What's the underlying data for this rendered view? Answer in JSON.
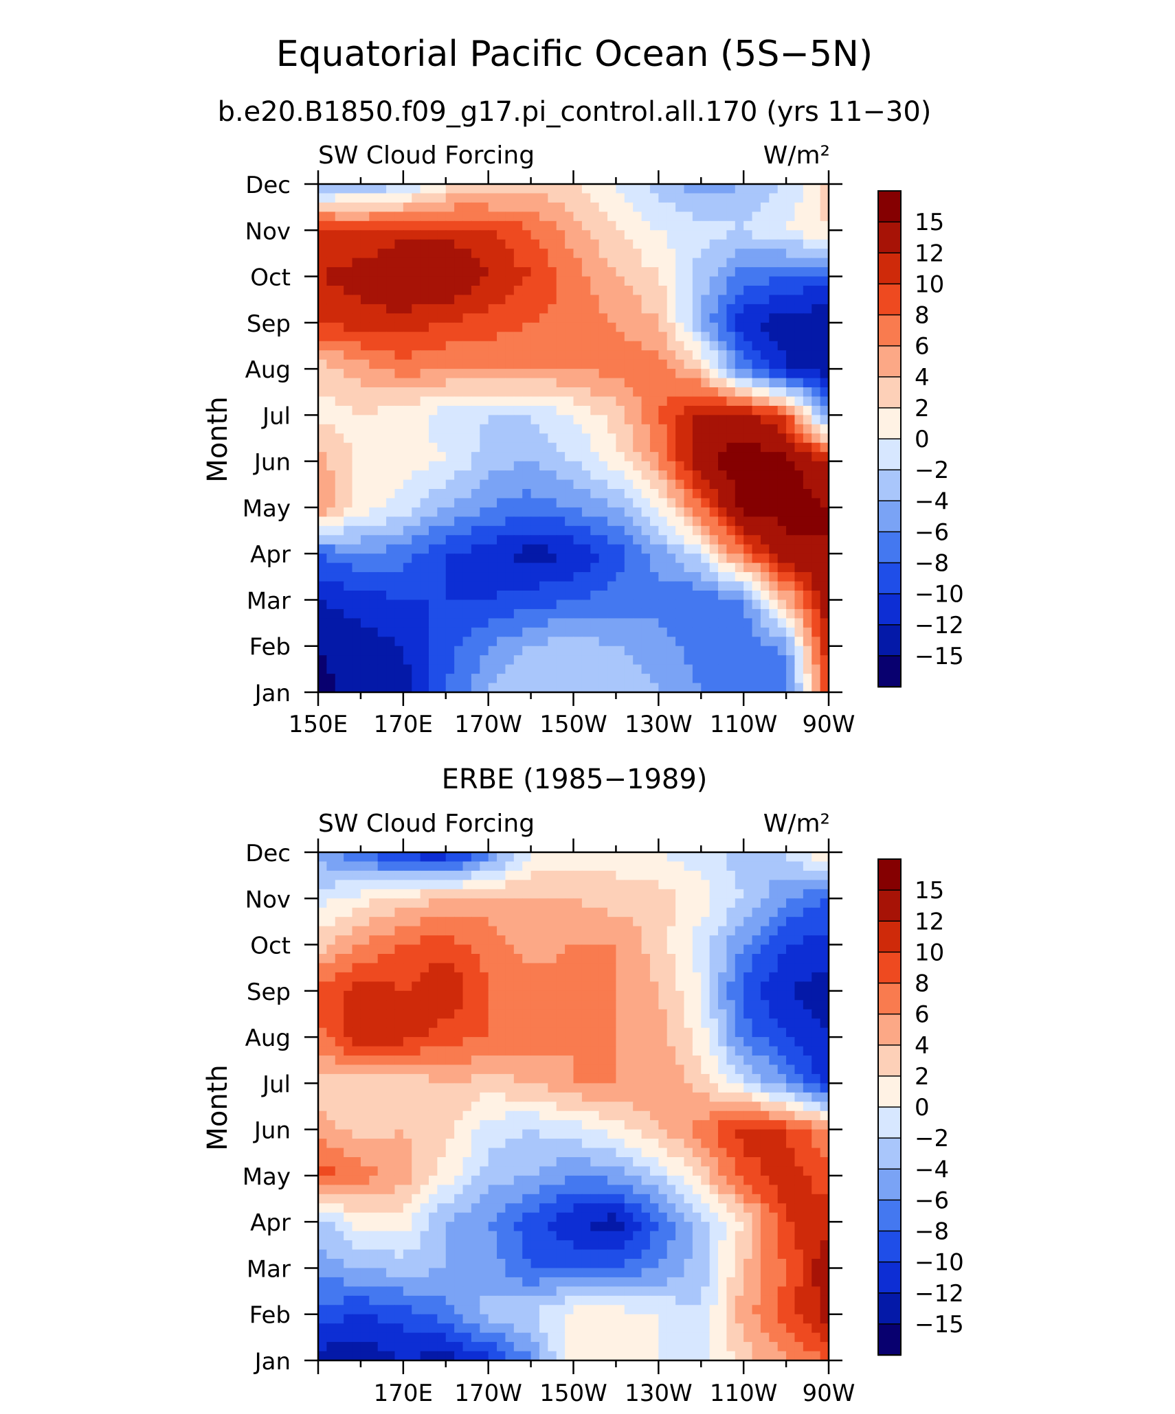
{
  "title": "Equatorial Pacific Ocean (5S−5N)",
  "chart_data": [
    {
      "type": "heatmap",
      "subtitle": "b.e20.B1850.f09_g17.pi_control.all.170 (yrs 11−30)",
      "left_label": "SW Cloud Forcing",
      "right_label": "W/m²",
      "ylabel": "Month",
      "xlabel": "",
      "x_ticks": [
        "150E",
        "170E",
        "170W",
        "150W",
        "130W",
        "110W",
        "90W"
      ],
      "y_ticks": [
        "Jan",
        "Feb",
        "Mar",
        "Apr",
        "May",
        "Jun",
        "Jul",
        "Aug",
        "Sep",
        "Oct",
        "Nov",
        "Dec"
      ],
      "xlim_lon_east": [
        150,
        270
      ],
      "months": [
        "Jan",
        "Feb",
        "Mar",
        "Apr",
        "May",
        "Jun",
        "Jul",
        "Aug",
        "Sep",
        "Oct",
        "Nov",
        "Dec"
      ],
      "longitudes": [
        150,
        160,
        170,
        180,
        190,
        200,
        210,
        220,
        230,
        240,
        250,
        260,
        270
      ],
      "values": [
        [
          -16,
          -14,
          -13,
          -8,
          -4,
          -2,
          -2,
          -3,
          -4,
          -6,
          -8,
          -8,
          10
        ],
        [
          -15,
          -13,
          -12,
          -9,
          -6,
          -4,
          -3,
          -4,
          -5,
          -7,
          -8,
          -5,
          12
        ],
        [
          -12,
          -11,
          -10,
          -10,
          -10,
          -9,
          -8,
          -7,
          -7,
          -8,
          -6,
          4,
          14
        ],
        [
          -8,
          -6,
          -7,
          -10,
          -11,
          -13,
          -12,
          -9,
          -5,
          -1,
          8,
          14,
          15
        ],
        [
          6,
          1,
          -1,
          -4,
          -6,
          -7,
          -6,
          -4,
          0,
          8,
          16,
          16,
          15
        ],
        [
          5,
          1,
          1,
          0,
          -3,
          -4,
          -2,
          1,
          6,
          14,
          17,
          16,
          12
        ],
        [
          1,
          2,
          1,
          -1,
          -2,
          -2,
          0,
          3,
          8,
          13,
          13,
          9,
          -6
        ],
        [
          3,
          5,
          7,
          6,
          6,
          6,
          6,
          7,
          7,
          3,
          -7,
          -12,
          -13
        ],
        [
          10,
          11,
          11,
          10,
          9,
          8,
          7,
          6,
          4,
          -4,
          -12,
          -13,
          -14
        ],
        [
          12,
          13,
          15,
          15,
          12,
          10,
          7,
          4,
          2,
          -3,
          -7,
          -8,
          -9
        ],
        [
          11,
          10,
          11,
          11,
          10,
          8,
          5,
          2,
          0,
          -1,
          -2,
          0,
          2
        ],
        [
          -5,
          -4,
          -3,
          1,
          2,
          3,
          2,
          0,
          -3,
          -5,
          -4,
          -2,
          3
        ]
      ],
      "levels": [
        -15,
        -12,
        -10,
        -8,
        -6,
        -4,
        -2,
        0,
        2,
        4,
        6,
        8,
        10,
        12,
        15
      ],
      "colorbar_labels": [
        "15",
        "12",
        "10",
        "8",
        "6",
        "4",
        "2",
        "0",
        "−2",
        "−4",
        "−6",
        "−8",
        "−10",
        "−12",
        "−15"
      ],
      "colors": [
        "#08006f",
        "#0419a8",
        "#0d2ed4",
        "#1f4ee8",
        "#4478f0",
        "#7aa3f5",
        "#a9c6fb",
        "#d7e7ff",
        "#fff2e4",
        "#fdd0b8",
        "#fca886",
        "#f97b4f",
        "#ee4a20",
        "#cf2a0a",
        "#a71306",
        "#850001"
      ]
    },
    {
      "type": "heatmap",
      "subtitle": "ERBE (1985−1989)",
      "left_label": "SW Cloud Forcing",
      "right_label": "W/m²",
      "ylabel": "Month",
      "xlabel": "",
      "x_ticks": [
        "170E",
        "170W",
        "150W",
        "130W",
        "110W",
        "90W"
      ],
      "y_ticks": [
        "Jan",
        "Feb",
        "Mar",
        "Apr",
        "May",
        "Jun",
        "Jul",
        "Aug",
        "Sep",
        "Oct",
        "Nov",
        "Dec"
      ],
      "xlim_lon_east": [
        150,
        270
      ],
      "months": [
        "Jan",
        "Feb",
        "Mar",
        "Apr",
        "May",
        "Jun",
        "Jul",
        "Aug",
        "Sep",
        "Oct",
        "Nov",
        "Dec"
      ],
      "longitudes": [
        150,
        160,
        170,
        180,
        190,
        200,
        210,
        220,
        230,
        240,
        250,
        260,
        270
      ],
      "values": [
        [
          -13,
          -14,
          -12,
          -13,
          -11,
          -6,
          1,
          1,
          0,
          -1,
          3,
          6,
          8
        ],
        [
          -9,
          -10,
          -9,
          -7,
          -3,
          -2,
          1,
          1,
          0,
          -2,
          5,
          9,
          13
        ],
        [
          -5,
          -4,
          -3,
          -4,
          -5,
          -8,
          -8,
          -8,
          -6,
          -3,
          4,
          8,
          14
        ],
        [
          -3,
          1,
          1,
          -4,
          -6,
          -9,
          -12,
          -13,
          -8,
          -3,
          2,
          10,
          11
        ],
        [
          9,
          7,
          5,
          1,
          -3,
          -4,
          -6,
          -5,
          -2,
          3,
          9,
          11,
          9
        ],
        [
          5,
          3,
          4,
          3,
          -1,
          -2,
          -1,
          1,
          4,
          7,
          11,
          10,
          6
        ],
        [
          3,
          2,
          2,
          4,
          3,
          4,
          6,
          6,
          6,
          3,
          -1,
          -6,
          -11
        ],
        [
          7,
          12,
          11,
          9,
          8,
          7,
          6,
          6,
          5,
          1,
          -7,
          -10,
          -12
        ],
        [
          9,
          11,
          10,
          12,
          8,
          7,
          7,
          6,
          4,
          0,
          -9,
          -12,
          -13
        ],
        [
          3,
          6,
          8,
          9,
          7,
          5,
          6,
          6,
          3,
          -1,
          -6,
          -10,
          -11
        ],
        [
          -1,
          1,
          3,
          4,
          5,
          4,
          4,
          3,
          3,
          1,
          -2,
          -6,
          -8
        ],
        [
          -5,
          -8,
          -11,
          -12,
          -7,
          0,
          1,
          1,
          0,
          -1,
          -3,
          -2,
          3
        ]
      ],
      "levels": [
        -15,
        -12,
        -10,
        -8,
        -6,
        -4,
        -2,
        0,
        2,
        4,
        6,
        8,
        10,
        12,
        15
      ],
      "colorbar_labels": [
        "15",
        "12",
        "10",
        "8",
        "6",
        "4",
        "2",
        "0",
        "−2",
        "−4",
        "−6",
        "−8",
        "−10",
        "−12",
        "−15"
      ],
      "colors": [
        "#08006f",
        "#0419a8",
        "#0d2ed4",
        "#1f4ee8",
        "#4478f0",
        "#7aa3f5",
        "#a9c6fb",
        "#d7e7ff",
        "#fff2e4",
        "#fdd0b8",
        "#fca886",
        "#f97b4f",
        "#ee4a20",
        "#cf2a0a",
        "#a71306",
        "#850001"
      ]
    }
  ]
}
